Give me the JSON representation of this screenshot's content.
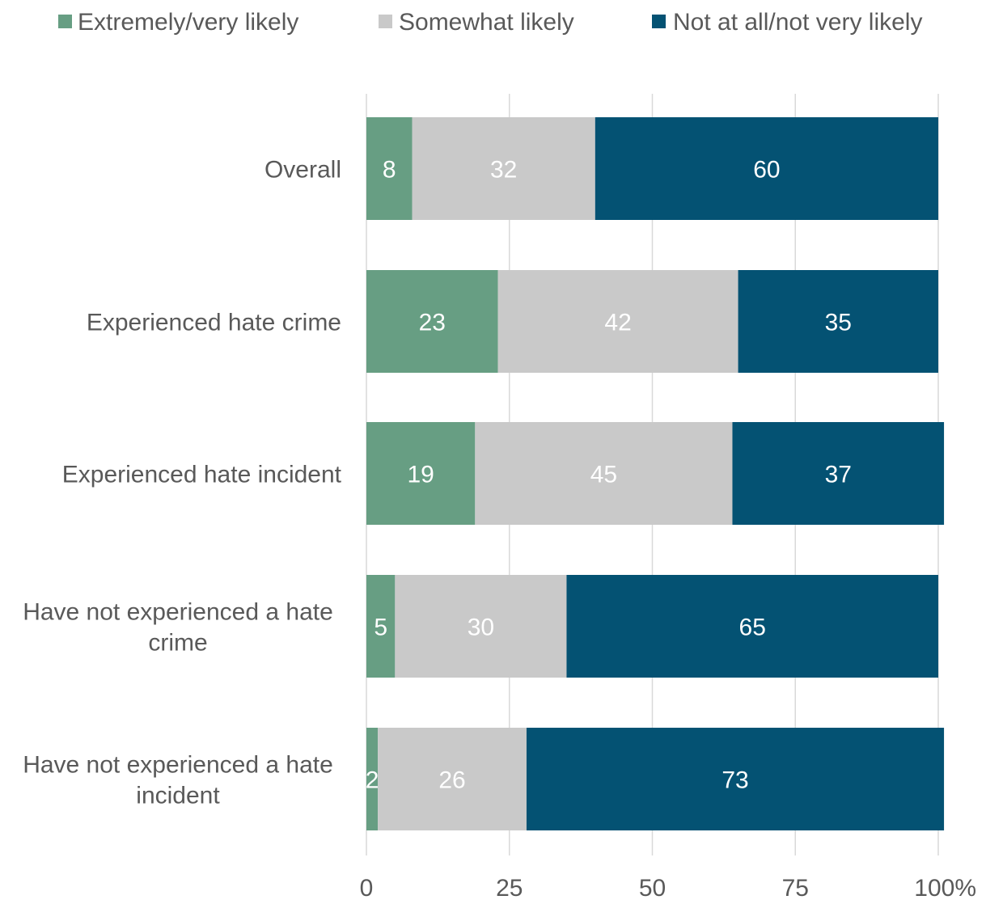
{
  "chart_data": {
    "type": "bar",
    "orientation": "horizontal",
    "stacked": true,
    "categories": [
      "Overall",
      "Experienced hate crime",
      "Experienced hate incident",
      "Have not experienced a hate crime",
      "Have not experienced a hate incident"
    ],
    "category_lines": [
      [
        "Overall"
      ],
      [
        "Experienced hate crime"
      ],
      [
        "Experienced hate incident"
      ],
      [
        "Have not experienced a hate",
        "crime"
      ],
      [
        "Have not experienced a hate",
        "incident"
      ]
    ],
    "series": [
      {
        "name": "Extremely/very likely",
        "color": "#679e83",
        "values": [
          8,
          23,
          19,
          5,
          2
        ]
      },
      {
        "name": "Somewhat likely",
        "color": "#c9c9c9",
        "values": [
          32,
          42,
          45,
          30,
          26
        ]
      },
      {
        "name": "Not at all/not very likely",
        "color": "#045273",
        "values": [
          60,
          35,
          37,
          65,
          73
        ]
      }
    ],
    "xlim": [
      0,
      100
    ],
    "xticks": [
      {
        "value": 0,
        "label": "0"
      },
      {
        "value": 25,
        "label": "25"
      },
      {
        "value": 50,
        "label": "50"
      },
      {
        "value": 75,
        "label": "75"
      },
      {
        "value": 100,
        "label": "100%"
      }
    ],
    "grid": true,
    "legend_position": "top",
    "data_label_color": "#ffffff",
    "text_color": "#595959",
    "grid_color": "#d9d9d9"
  }
}
